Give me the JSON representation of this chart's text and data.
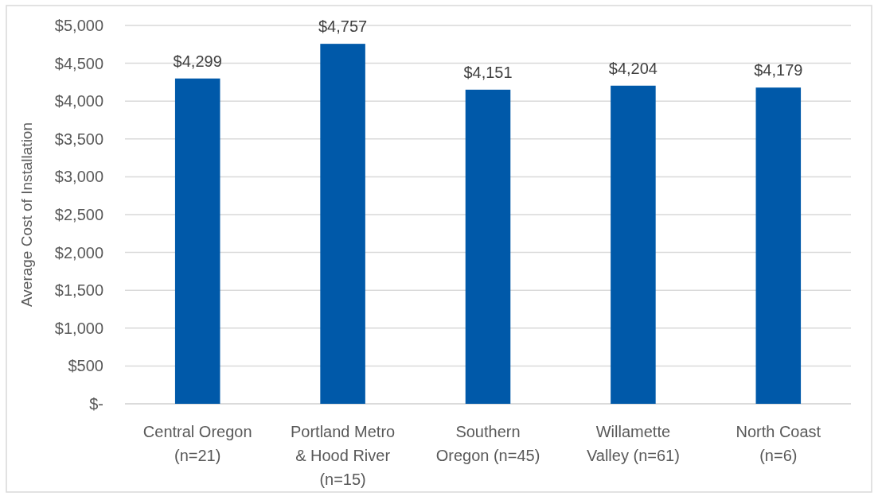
{
  "chart_data": {
    "type": "bar",
    "ylabel": "Average Cost of Installation",
    "categories": [
      "Central Oregon (n=21)",
      "Portland Metro & Hood River (n=15)",
      "Southern Oregon (n=45)",
      "Willamette Valley (n=61)",
      "North Coast (n=6)"
    ],
    "values": [
      4299,
      4757,
      4151,
      4204,
      4179
    ],
    "color": "#0059a9",
    "value_labels": [
      "$4,299",
      "$4,757",
      "$4,151",
      "$4,204",
      "$4,179"
    ],
    "ylim": [
      0,
      5000
    ],
    "yticks": [
      {
        "value": 0,
        "label": "$-"
      },
      {
        "value": 500,
        "label": "$500"
      },
      {
        "value": 1000,
        "label": "$1,000"
      },
      {
        "value": 1500,
        "label": "$1,500"
      },
      {
        "value": 2000,
        "label": "$2,000"
      },
      {
        "value": 2500,
        "label": "$2,500"
      },
      {
        "value": 3000,
        "label": "$3,000"
      },
      {
        "value": 3500,
        "label": "$3,500"
      },
      {
        "value": 4000,
        "label": "$4,000"
      },
      {
        "value": 4500,
        "label": "$4,500"
      },
      {
        "value": 5000,
        "label": "$5,000"
      }
    ],
    "grid": "y"
  }
}
